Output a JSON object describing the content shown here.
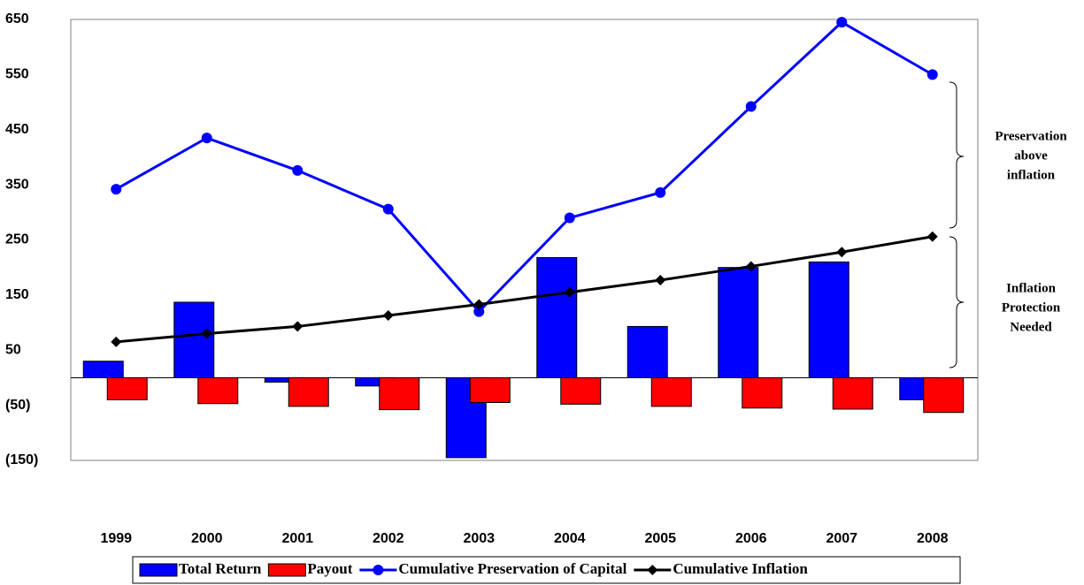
{
  "chart_data": {
    "type": "combo",
    "categories": [
      "1999",
      "2000",
      "2001",
      "2002",
      "2003",
      "2004",
      "2005",
      "2006",
      "2007",
      "2008"
    ],
    "series": [
      {
        "name": "Total Return",
        "type": "bar",
        "color": "#0000ff",
        "values": [
          30,
          137,
          -8,
          -15,
          -145,
          218,
          93,
          200,
          210,
          -40
        ]
      },
      {
        "name": "Payout",
        "type": "bar",
        "color": "#ff0000",
        "values": [
          -40,
          -47,
          -52,
          -58,
          -45,
          -48,
          -52,
          -55,
          -57,
          -63
        ]
      },
      {
        "name": "Cumulative Preservation of Capital",
        "type": "line",
        "marker": "circle",
        "color": "#0000ff",
        "values": [
          342,
          435,
          376,
          306,
          120,
          290,
          336,
          492,
          645,
          550
        ]
      },
      {
        "name": "Cumulative Inflation",
        "type": "line",
        "marker": "diamond",
        "color": "#000000",
        "values": [
          65,
          80,
          93,
          113,
          133,
          155,
          177,
          202,
          228,
          256
        ]
      }
    ],
    "ylim": [
      -150,
      650
    ],
    "yticks": [
      {
        "value": -150,
        "label": "(150)"
      },
      {
        "value": -50,
        "label": "(50)"
      },
      50,
      150,
      250,
      350,
      450,
      550,
      650
    ],
    "grid": false,
    "legend": "bottom",
    "annotations": [
      {
        "lines": [
          "Preservation",
          "above",
          "inflation"
        ]
      },
      {
        "lines": [
          "Inflation",
          "Protection",
          "Needed"
        ]
      }
    ]
  }
}
